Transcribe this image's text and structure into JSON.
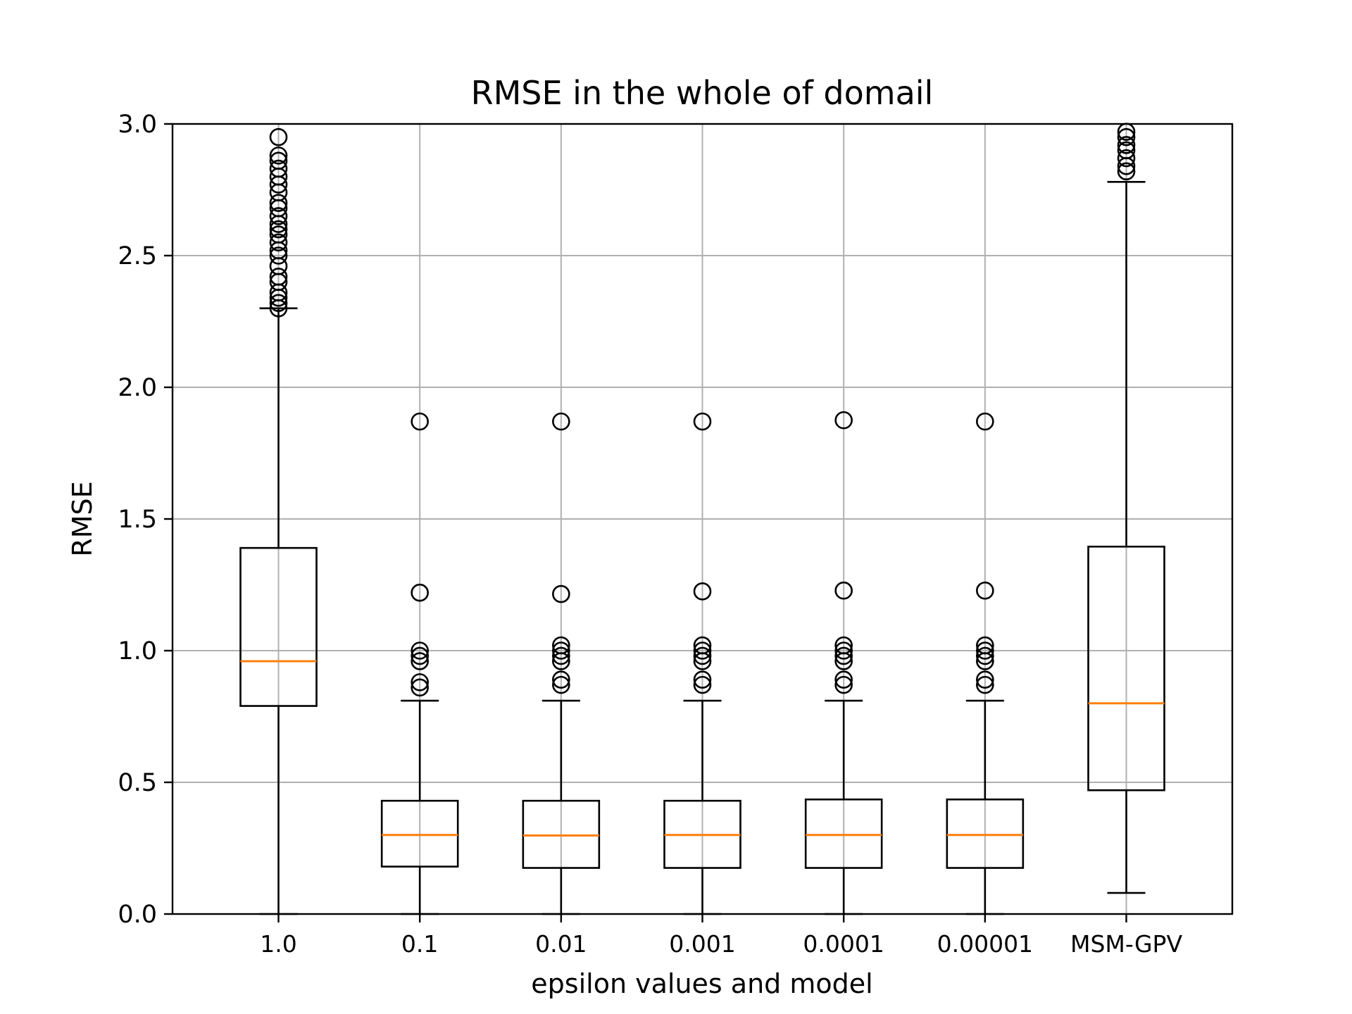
{
  "chart_data": {
    "type": "boxplot",
    "title": "RMSE in the whole of domail",
    "xlabel": "epsilon values and model",
    "ylabel": "RMSE",
    "ylim": [
      0,
      3
    ],
    "yticks": [
      "0.0",
      "0.5",
      "1.0",
      "1.5",
      "2.0",
      "2.5",
      "3.0"
    ],
    "grid": true,
    "categories": [
      "1.0",
      "0.1",
      "0.01",
      "0.001",
      "0.0001",
      "0.00001",
      "MSM-GPV"
    ],
    "boxes": [
      {
        "whislo": 0.0,
        "q1": 0.79,
        "med": 0.96,
        "q3": 1.39,
        "whishi": 2.3,
        "fliers": [
          2.3,
          2.32,
          2.34,
          2.36,
          2.4,
          2.42,
          2.46,
          2.5,
          2.52,
          2.55,
          2.58,
          2.6,
          2.62,
          2.65,
          2.68,
          2.7,
          2.74,
          2.77,
          2.8,
          2.83,
          2.86,
          2.88,
          2.95
        ]
      },
      {
        "whislo": 0.0,
        "q1": 0.18,
        "med": 0.3,
        "q3": 0.43,
        "whishi": 0.81,
        "fliers": [
          0.86,
          0.88,
          0.96,
          0.98,
          1.0,
          1.22,
          1.87
        ]
      },
      {
        "whislo": 0.0,
        "q1": 0.175,
        "med": 0.298,
        "q3": 0.43,
        "whishi": 0.81,
        "fliers": [
          0.87,
          0.89,
          0.96,
          0.98,
          1.0,
          1.02,
          1.215,
          1.87
        ]
      },
      {
        "whislo": 0.0,
        "q1": 0.175,
        "med": 0.3,
        "q3": 0.43,
        "whishi": 0.81,
        "fliers": [
          0.87,
          0.89,
          0.96,
          0.98,
          1.0,
          1.02,
          1.225,
          1.87
        ]
      },
      {
        "whislo": 0.0,
        "q1": 0.175,
        "med": 0.3,
        "q3": 0.435,
        "whishi": 0.81,
        "fliers": [
          0.87,
          0.89,
          0.96,
          0.98,
          1.0,
          1.02,
          1.228,
          1.875
        ]
      },
      {
        "whislo": 0.0,
        "q1": 0.175,
        "med": 0.3,
        "q3": 0.435,
        "whishi": 0.81,
        "fliers": [
          0.87,
          0.89,
          0.96,
          0.98,
          1.0,
          1.02,
          1.228,
          1.87
        ]
      },
      {
        "whislo": 0.08,
        "q1": 0.47,
        "med": 0.8,
        "q3": 1.395,
        "whishi": 2.78,
        "fliers": [
          2.82,
          2.84,
          2.87,
          2.9,
          2.92,
          2.95,
          2.97
        ]
      }
    ],
    "colors": {
      "box": "#000000",
      "median": "#ff7f0e",
      "grid": "#b0b0b0",
      "flier": "#000000"
    }
  }
}
